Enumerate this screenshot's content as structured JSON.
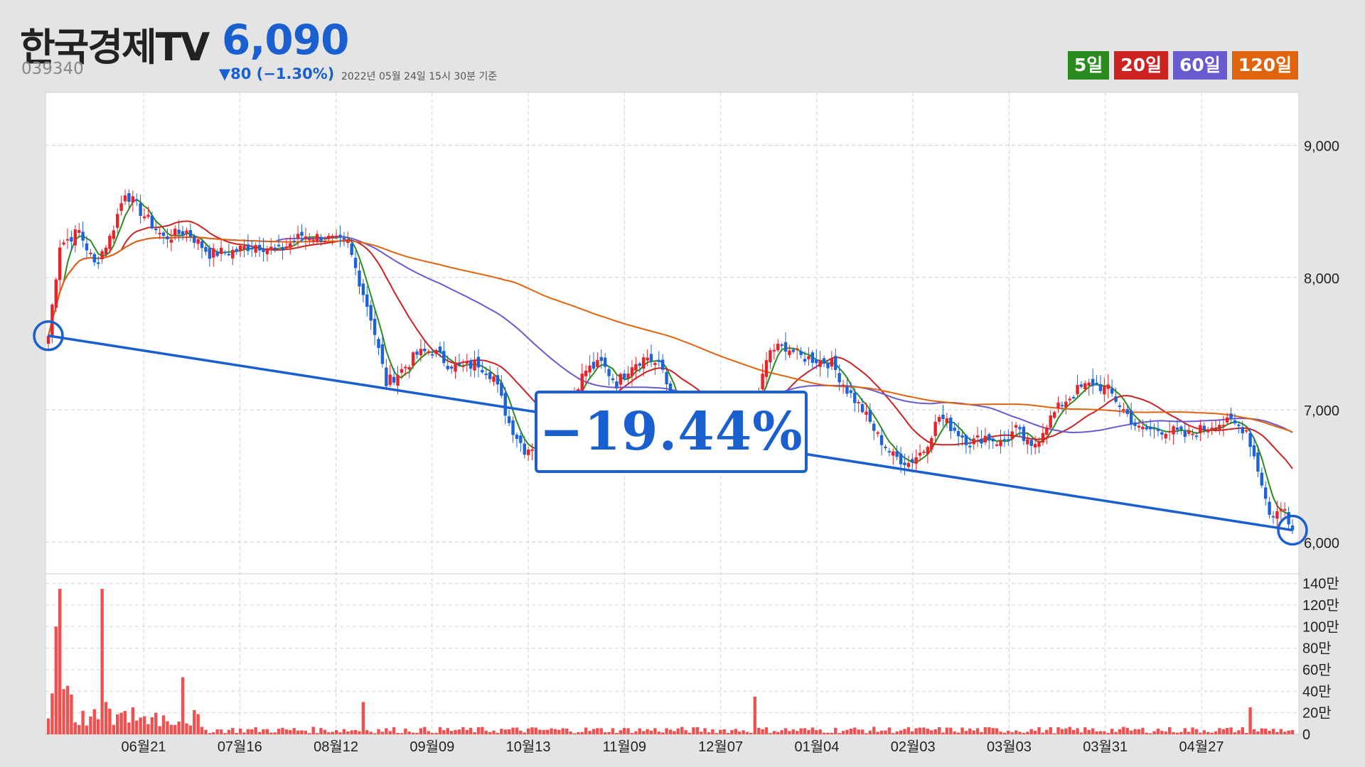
{
  "header": {
    "title": "한국경제TV",
    "price": "6,090",
    "code": "039340",
    "change": "▼80 (−1.30%)",
    "basis": "2022년 05월 24일 15시 30분 기준"
  },
  "legend": [
    {
      "label": "5일",
      "color": "#2a8c1e"
    },
    {
      "label": "20일",
      "color": "#cc2222"
    },
    {
      "label": "60일",
      "color": "#6a5ad0"
    },
    {
      "label": "120일",
      "color": "#e0640e"
    }
  ],
  "annotation": {
    "label": "−19.44%",
    "start_price": 7560,
    "end_price": 6090
  },
  "chart_data": {
    "type": "candlestick",
    "title": "",
    "x_tick_labels": [
      "06월21",
      "07월16",
      "08월12",
      "09월09",
      "10월13",
      "11월09",
      "12월07",
      "01월04",
      "02월03",
      "03월03",
      "03월31",
      "04월27"
    ],
    "y_tick_labels": [
      "9,000",
      "8,000",
      "7,000",
      "6,000"
    ],
    "y_ticks": [
      9000,
      8000,
      7000,
      6000
    ],
    "ylim": [
      5760,
      9400
    ],
    "volume_tick_labels": [
      "140만",
      "120만",
      "100만",
      "80만",
      "60만",
      "40만",
      "20만",
      "0"
    ],
    "volume_ticks": [
      140,
      120,
      100,
      80,
      60,
      40,
      20,
      0
    ],
    "volume_ylim": [
      0,
      145
    ],
    "volume_unit": "만",
    "grid": true,
    "up_color": "#e8232a",
    "down_color": "#1c62d8",
    "close_anchors": [
      [
        0,
        7560
      ],
      [
        3,
        8250
      ],
      [
        8,
        8350
      ],
      [
        12,
        8100
      ],
      [
        16,
        8300
      ],
      [
        20,
        8650
      ],
      [
        24,
        8500
      ],
      [
        30,
        8300
      ],
      [
        36,
        8350
      ],
      [
        42,
        8180
      ],
      [
        48,
        8200
      ],
      [
        54,
        8250
      ],
      [
        60,
        8200
      ],
      [
        66,
        8320
      ],
      [
        72,
        8300
      ],
      [
        78,
        8250
      ],
      [
        84,
        7700
      ],
      [
        88,
        7200
      ],
      [
        92,
        7300
      ],
      [
        96,
        7420
      ],
      [
        100,
        7450
      ],
      [
        104,
        7350
      ],
      [
        108,
        7320
      ],
      [
        112,
        7350
      ],
      [
        116,
        7250
      ],
      [
        120,
        6900
      ],
      [
        124,
        6700
      ],
      [
        128,
        6750
      ],
      [
        132,
        6900
      ],
      [
        136,
        7100
      ],
      [
        140,
        7300
      ],
      [
        144,
        7350
      ],
      [
        148,
        7200
      ],
      [
        152,
        7350
      ],
      [
        156,
        7400
      ],
      [
        160,
        7300
      ],
      [
        164,
        6900
      ],
      [
        168,
        6800
      ],
      [
        172,
        6750
      ],
      [
        176,
        6900
      ],
      [
        180,
        7000
      ],
      [
        184,
        7050
      ],
      [
        188,
        7450
      ],
      [
        192,
        7480
      ],
      [
        196,
        7400
      ],
      [
        200,
        7380
      ],
      [
        204,
        7350
      ],
      [
        208,
        7150
      ],
      [
        212,
        7000
      ],
      [
        216,
        6800
      ],
      [
        220,
        6650
      ],
      [
        224,
        6600
      ],
      [
        228,
        6700
      ],
      [
        232,
        6950
      ],
      [
        236,
        6850
      ],
      [
        240,
        6750
      ],
      [
        244,
        6800
      ],
      [
        248,
        6750
      ],
      [
        252,
        6850
      ],
      [
        256,
        6700
      ],
      [
        260,
        6900
      ],
      [
        264,
        7050
      ],
      [
        268,
        7150
      ],
      [
        272,
        7200
      ],
      [
        276,
        7150
      ],
      [
        280,
        7000
      ],
      [
        284,
        6850
      ],
      [
        288,
        6850
      ],
      [
        292,
        6850
      ],
      [
        296,
        6800
      ],
      [
        300,
        6850
      ],
      [
        304,
        6900
      ],
      [
        308,
        6900
      ],
      [
        312,
        6850
      ],
      [
        316,
        6450
      ],
      [
        318,
        6200
      ],
      [
        322,
        6250
      ],
      [
        324,
        6090
      ]
    ],
    "volume_peaks": [
      [
        1,
        38
      ],
      [
        2,
        100
      ],
      [
        3,
        135
      ],
      [
        4,
        42
      ],
      [
        5,
        45
      ],
      [
        6,
        37
      ],
      [
        14,
        135
      ],
      [
        15,
        30
      ],
      [
        35,
        53
      ],
      [
        22,
        25
      ],
      [
        28,
        20
      ],
      [
        82,
        30
      ],
      [
        184,
        35
      ],
      [
        313,
        25
      ]
    ],
    "ma_periods": [
      5,
      20,
      60,
      120
    ],
    "trendline": [
      [
        0,
        7560
      ],
      [
        324,
        6090
      ]
    ]
  }
}
